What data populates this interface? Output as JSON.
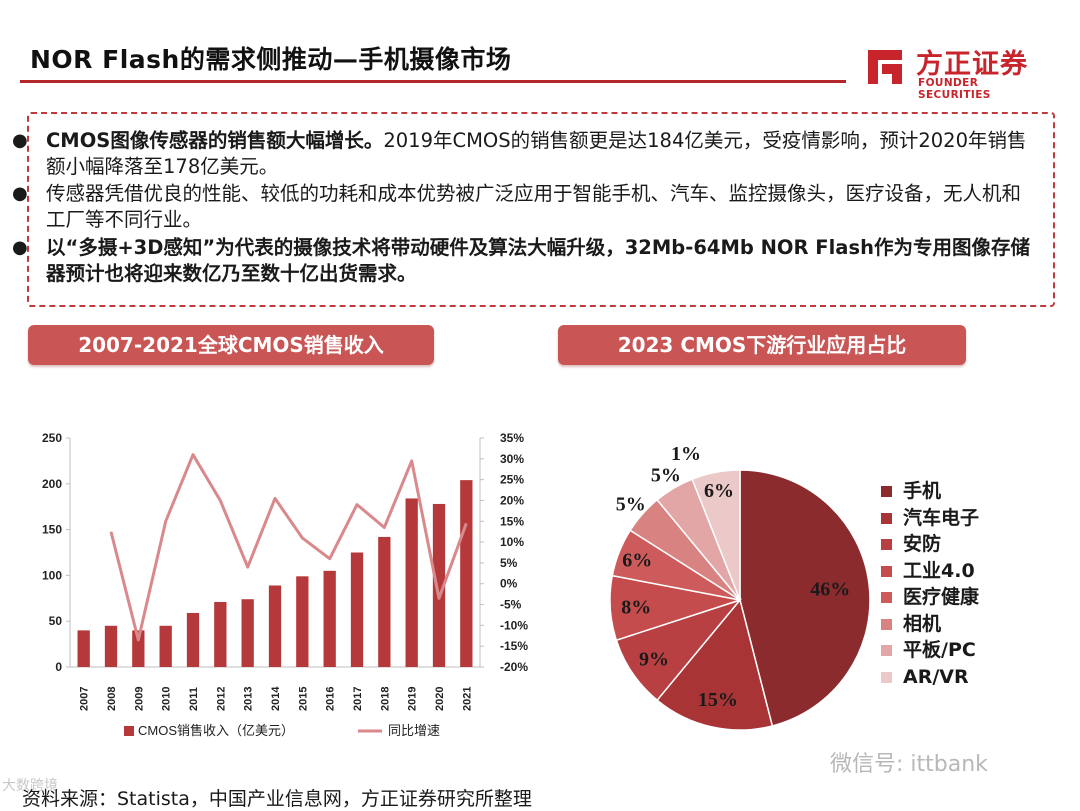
{
  "header": {
    "title": "NOR Flash的需求侧推动—手机摄像市场",
    "logo_cn": "方正证券",
    "logo_en": "FOUNDER SECURITIES",
    "brand_color": "#c8242b"
  },
  "bullets": [
    {
      "bold": "CMOS图像传感器的销售额大幅增长。",
      "text": "2019年CMOS的销售额更是达184亿美元，受疫情影响，预计2020年销售额小幅降落至178亿美元。"
    },
    {
      "bold": "",
      "text": "传感器凭借优良的性能、较低的功耗和成本优势被广泛应用于智能手机、汽车、监控摄像头，医疗设备，无人机和工厂等不同行业。"
    },
    {
      "bold": "以“多摄+3D感知”为代表的摄像技术将带动硬件及算法大幅升级，32Mb-64Mb NOR Flash作为专用图像存储器预计也将迎来数亿乃至数十亿出货需求。",
      "text": ""
    }
  ],
  "sections": {
    "left_title": "2007-2021全球CMOS销售收入",
    "right_title": "2023 CMOS下游行业应用占比"
  },
  "chart_data": [
    {
      "type": "bar",
      "categories": [
        "2007",
        "2008",
        "2009",
        "2010",
        "2011",
        "2012",
        "2013",
        "2014",
        "2015",
        "2016",
        "2017",
        "2018",
        "2019",
        "2020",
        "2021"
      ],
      "series": [
        {
          "name": "CMOS销售收入（亿美元）",
          "kind": "bar",
          "axis": "left",
          "color": "#b5393b",
          "values": [
            40,
            45,
            40,
            45,
            59,
            71,
            74,
            89,
            99,
            105,
            125,
            142,
            184,
            178,
            204
          ]
        },
        {
          "name": "同比增速",
          "kind": "line",
          "axis": "right",
          "color": "#d9898c",
          "values": [
            null,
            12.5,
            -13.5,
            15,
            31,
            20,
            4,
            20.5,
            11,
            6,
            19,
            13.5,
            29.5,
            -3.5,
            14.5
          ]
        }
      ],
      "ylim_left": [
        0,
        250
      ],
      "yticks_left": [
        "0",
        "50",
        "100",
        "150",
        "200",
        "250"
      ],
      "ylim_right": [
        -20,
        35
      ],
      "yticks_right": [
        "-20%",
        "-15%",
        "-10%",
        "-5%",
        "0%",
        "5%",
        "10%",
        "15%",
        "20%",
        "25%",
        "30%",
        "35%"
      ],
      "legend_position": "bottom",
      "grid": false
    },
    {
      "type": "pie",
      "categories": [
        "手机",
        "汽车电子",
        "安防",
        "工业4.0",
        "医疗健康",
        "相机",
        "平板/PC",
        "AR/VR"
      ],
      "values": [
        46,
        15,
        9,
        8,
        6,
        5,
        5,
        6
      ],
      "labels": [
        "46%",
        "15%",
        "9%",
        "8%",
        "6%",
        "5%",
        "5%",
        "6%"
      ],
      "extra_labels": [
        "1%"
      ],
      "colors": [
        "#8b2b2e",
        "#a83436",
        "#b94042",
        "#c44c4c",
        "#cd5b5b",
        "#d98282",
        "#e2a6a6",
        "#ecc9c9"
      ],
      "legend_position": "right"
    }
  ],
  "footer": {
    "source": "资料来源：Statista，中国产业信息网，方正证券研究所整理",
    "wechat": "微信号: ittbank",
    "watermark": "大数跨境"
  }
}
